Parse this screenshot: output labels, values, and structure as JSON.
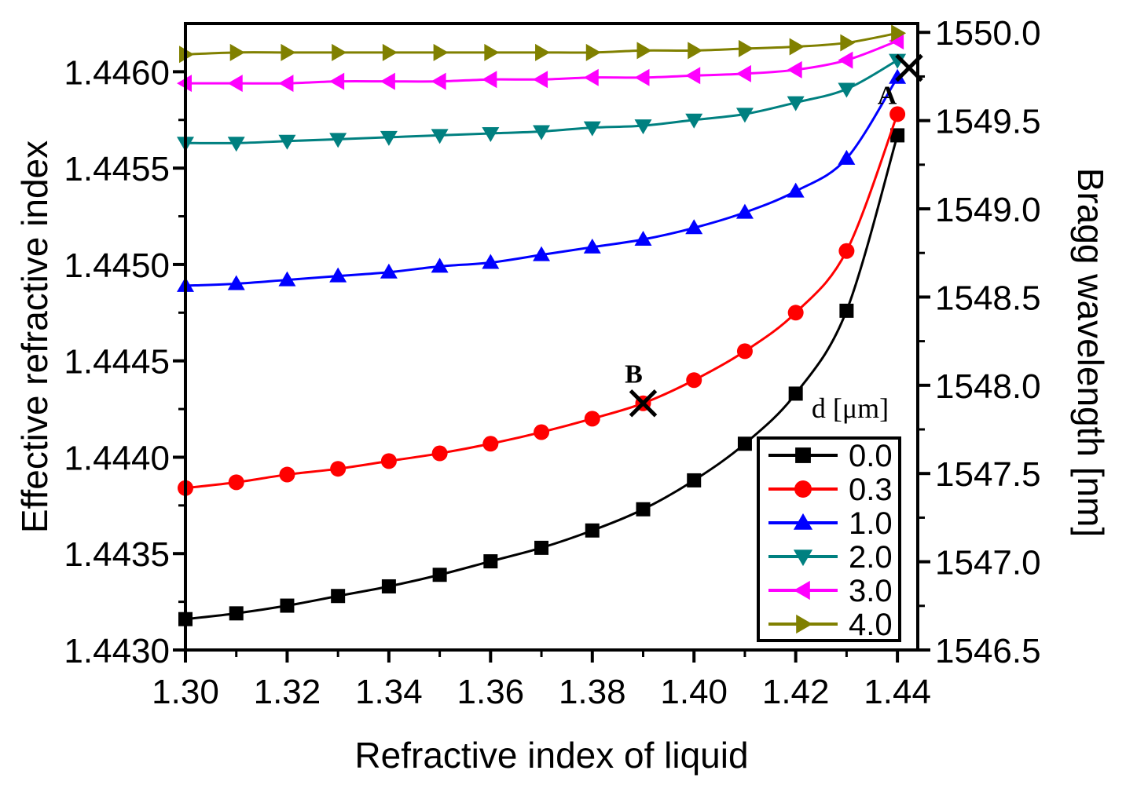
{
  "chart_data": {
    "type": "line",
    "title": "",
    "xlabel": "Refractive index of liquid",
    "ylabel": "Effective refractive index",
    "y2label": "Bragg wavelength [nm]",
    "xlim": [
      1.3,
      1.444
    ],
    "ylim": [
      1.443,
      1.44625
    ],
    "y2lim": [
      1546.5,
      1550.05
    ],
    "x_ticks": [
      "1.30",
      "1.32",
      "1.34",
      "1.36",
      "1.38",
      "1.40",
      "1.42",
      "1.44"
    ],
    "y_ticks": [
      "1.4430",
      "1.4435",
      "1.4440",
      "1.4445",
      "1.4450",
      "1.4455",
      "1.4460"
    ],
    "y2_ticks": [
      "1546.5",
      "1547.0",
      "1547.5",
      "1548.0",
      "1548.5",
      "1549.0",
      "1549.5",
      "1550.0"
    ],
    "legend": {
      "title": "d [μm]",
      "placement": "bottom-right"
    },
    "x": [
      1.3,
      1.31,
      1.32,
      1.33,
      1.34,
      1.35,
      1.36,
      1.37,
      1.38,
      1.39,
      1.4,
      1.41,
      1.42,
      1.43,
      1.44
    ],
    "series": [
      {
        "name": "0.0",
        "marker": "square",
        "color": "#000000",
        "values": [
          1.44316,
          1.44319,
          1.44323,
          1.44328,
          1.44333,
          1.44339,
          1.44346,
          1.44353,
          1.44362,
          1.44373,
          1.44388,
          1.44407,
          1.44433,
          1.44476,
          1.44567
        ]
      },
      {
        "name": "0.3",
        "marker": "circle",
        "color": "#ff0000",
        "values": [
          1.44384,
          1.44387,
          1.44391,
          1.44394,
          1.44398,
          1.44402,
          1.44407,
          1.44413,
          1.4442,
          1.44428,
          1.4444,
          1.44455,
          1.44475,
          1.44507,
          1.44578
        ]
      },
      {
        "name": "1.0",
        "marker": "triangle-up",
        "color": "#0000ff",
        "values": [
          1.44489,
          1.4449,
          1.44492,
          1.44494,
          1.44496,
          1.44499,
          1.44501,
          1.44505,
          1.44509,
          1.44513,
          1.44519,
          1.44527,
          1.44538,
          1.44555,
          1.44597
        ]
      },
      {
        "name": "2.0",
        "marker": "triangle-down",
        "color": "#008080",
        "values": [
          1.44563,
          1.44563,
          1.44564,
          1.44565,
          1.44566,
          1.44567,
          1.44568,
          1.44569,
          1.44571,
          1.44572,
          1.44575,
          1.44578,
          1.44584,
          1.44591,
          1.44606
        ]
      },
      {
        "name": "3.0",
        "marker": "triangle-left",
        "color": "#ff00ff",
        "values": [
          1.44594,
          1.44594,
          1.44594,
          1.44595,
          1.44595,
          1.44595,
          1.44596,
          1.44596,
          1.44597,
          1.44597,
          1.44598,
          1.44599,
          1.44601,
          1.44606,
          1.44616
        ]
      },
      {
        "name": "4.0",
        "marker": "triangle-right",
        "color": "#808000",
        "values": [
          1.44609,
          1.4461,
          1.4461,
          1.4461,
          1.4461,
          1.4461,
          1.4461,
          1.4461,
          1.4461,
          1.44611,
          1.44611,
          1.44612,
          1.44613,
          1.44615,
          1.4462
        ]
      }
    ],
    "annotations": [
      {
        "label": "A",
        "x": 1.4423,
        "y": 1.44602
      },
      {
        "label": "B",
        "x": 1.39,
        "y": 1.44428
      }
    ]
  }
}
